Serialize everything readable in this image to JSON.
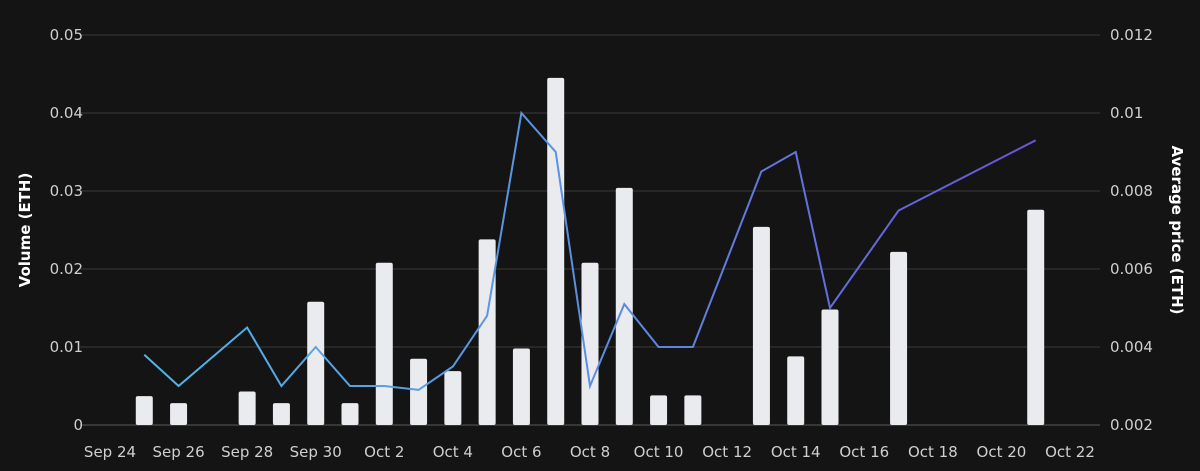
{
  "chart_data": {
    "type": "bar+line",
    "x_axis": {
      "type": "date",
      "range": [
        "2023-09-24",
        "2023-10-22"
      ],
      "tick_labels": [
        "Sep 24",
        "Sep 26",
        "Sep 28",
        "Sep 30",
        "Oct 2",
        "Oct 4",
        "Oct 6",
        "Oct 8",
        "Oct 10",
        "Oct 12",
        "Oct 14",
        "Oct 16",
        "Oct 18",
        "Oct 20",
        "Oct 22"
      ],
      "tick_dates": [
        "2023-09-24",
        "2023-09-26",
        "2023-09-28",
        "2023-09-30",
        "2023-10-02",
        "2023-10-04",
        "2023-10-06",
        "2023-10-08",
        "2023-10-10",
        "2023-10-12",
        "2023-10-14",
        "2023-10-16",
        "2023-10-18",
        "2023-10-20",
        "2023-10-22"
      ]
    },
    "y_left": {
      "label": "Volume (ETH)",
      "range": [
        0,
        0.05
      ],
      "tick_labels": [
        "0",
        "0.01",
        "0.02",
        "0.03",
        "0.04",
        "0.05"
      ],
      "tick_values": [
        0,
        0.01,
        0.02,
        0.03,
        0.04,
        0.05
      ]
    },
    "y_right": {
      "label": "Average price (ETH)",
      "range": [
        0.002,
        0.012
      ],
      "tick_labels": [
        "0.002",
        "0.004",
        "0.006",
        "0.008",
        "0.01",
        "0.012"
      ],
      "tick_values": [
        0.002,
        0.004,
        0.006,
        0.008,
        0.01,
        0.012
      ]
    },
    "grid": true,
    "bars": {
      "axis": "left",
      "color": "#eaebee",
      "points": [
        {
          "date": "2023-09-25",
          "value": 0.0037
        },
        {
          "date": "2023-09-26",
          "value": 0.0028
        },
        {
          "date": "2023-09-28",
          "value": 0.0043
        },
        {
          "date": "2023-09-29",
          "value": 0.0028
        },
        {
          "date": "2023-09-30",
          "value": 0.0158
        },
        {
          "date": "2023-10-01",
          "value": 0.0028
        },
        {
          "date": "2023-10-02",
          "value": 0.0208
        },
        {
          "date": "2023-10-03",
          "value": 0.0085
        },
        {
          "date": "2023-10-04",
          "value": 0.0069
        },
        {
          "date": "2023-10-05",
          "value": 0.0238
        },
        {
          "date": "2023-10-06",
          "value": 0.0098
        },
        {
          "date": "2023-10-07",
          "value": 0.0445
        },
        {
          "date": "2023-10-08",
          "value": 0.0208
        },
        {
          "date": "2023-10-09",
          "value": 0.0304
        },
        {
          "date": "2023-10-10",
          "value": 0.0038
        },
        {
          "date": "2023-10-11",
          "value": 0.0038
        },
        {
          "date": "2023-10-13",
          "value": 0.0254
        },
        {
          "date": "2023-10-14",
          "value": 0.0088
        },
        {
          "date": "2023-10-15",
          "value": 0.0148
        },
        {
          "date": "2023-10-17",
          "value": 0.0222
        },
        {
          "date": "2023-10-21",
          "value": 0.0276
        }
      ]
    },
    "line": {
      "axis": "right",
      "gradient_colors": [
        "#4fb6e8",
        "#5b8ce0",
        "#6a4fd8"
      ],
      "points": [
        {
          "date": "2023-09-25",
          "value": 0.0038
        },
        {
          "date": "2023-09-26",
          "value": 0.003
        },
        {
          "date": "2023-09-28",
          "value": 0.0045
        },
        {
          "date": "2023-09-29",
          "value": 0.003
        },
        {
          "date": "2023-09-30",
          "value": 0.004
        },
        {
          "date": "2023-10-01",
          "value": 0.003
        },
        {
          "date": "2023-10-02",
          "value": 0.003
        },
        {
          "date": "2023-10-03",
          "value": 0.0029
        },
        {
          "date": "2023-10-04",
          "value": 0.0035
        },
        {
          "date": "2023-10-05",
          "value": 0.0048
        },
        {
          "date": "2023-10-06",
          "value": 0.01
        },
        {
          "date": "2023-10-07",
          "value": 0.009
        },
        {
          "date": "2023-10-08",
          "value": 0.003
        },
        {
          "date": "2023-10-09",
          "value": 0.0051
        },
        {
          "date": "2023-10-10",
          "value": 0.004
        },
        {
          "date": "2023-10-11",
          "value": 0.004
        },
        {
          "date": "2023-10-13",
          "value": 0.0085
        },
        {
          "date": "2023-10-14",
          "value": 0.009
        },
        {
          "date": "2023-10-15",
          "value": 0.005
        },
        {
          "date": "2023-10-17",
          "value": 0.0075
        },
        {
          "date": "2023-10-21",
          "value": 0.0093
        }
      ]
    }
  }
}
